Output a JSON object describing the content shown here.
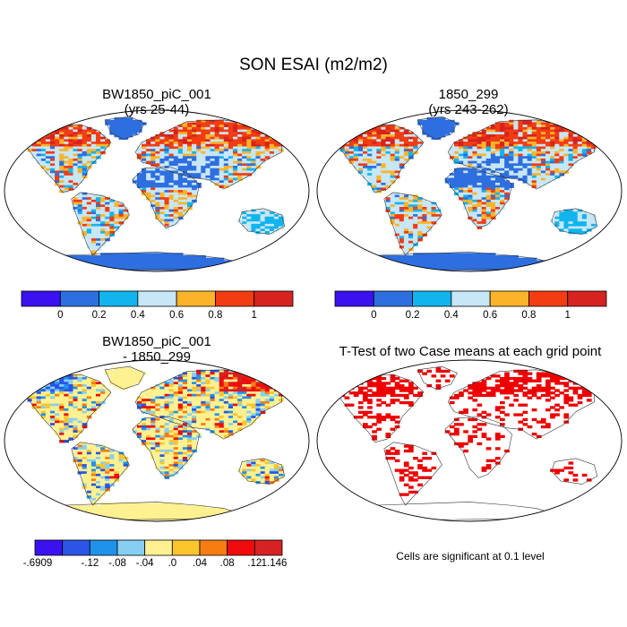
{
  "title": "SON ESAI (m2/m2)",
  "panels": [
    {
      "id": "case1",
      "title_line1": "BW1850_piC_001",
      "title_line2": "(yrs 25-44)",
      "kind": "field"
    },
    {
      "id": "case2",
      "title_line1": "1850_299",
      "title_line2": "(yrs 243-262)",
      "kind": "field"
    },
    {
      "id": "diff",
      "title_line1": "BW1850_piC_001",
      "title_line2": "- 1850_299",
      "kind": "difference"
    },
    {
      "id": "ttest",
      "title_line1": "T-Test of two Case means at each grid point",
      "title_line2": "",
      "kind": "significance"
    }
  ],
  "colorbar_field": {
    "colors": [
      "#3a12f0",
      "#2e6fe0",
      "#12b4ee",
      "#c7e6f6",
      "#fbb42a",
      "#f23c12",
      "#d6231f"
    ],
    "tick_labels": [
      "0",
      "0.2",
      "0.4",
      "0.6",
      "0.8",
      "1"
    ]
  },
  "colorbar_diff": {
    "colors": [
      "#3a12f0",
      "#2a55e6",
      "#2192ea",
      "#86cff2",
      "#fef191",
      "#fcc52e",
      "#f77d12",
      "#f00c0c",
      "#d62222"
    ],
    "tick_labels": [
      "-.6909",
      "-.12",
      "-.08",
      "-.04",
      ".0",
      ".04",
      ".08",
      ".12",
      "1.146"
    ]
  },
  "significance_note": "Cells are significant at 0.1 level",
  "significance_color": "#ee0000"
}
